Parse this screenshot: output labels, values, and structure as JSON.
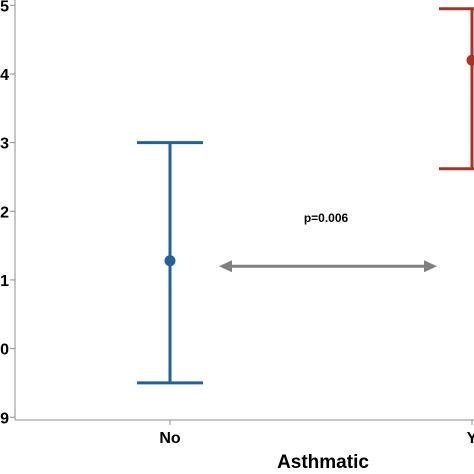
{
  "chart_data": {
    "type": "errorbar",
    "xlabel": "Asthmatic",
    "categories": [
      "No",
      "Yes"
    ],
    "x_tick_labels": [
      "No",
      "Y"
    ],
    "y_tick_labels": [
      "9",
      "0",
      "1",
      "2",
      "3",
      "4",
      "5"
    ],
    "ylim": [
      8.96,
      15.15
    ],
    "series": [
      {
        "category": "No",
        "mean": 11.28,
        "lower": 9.5,
        "upper": 13.0,
        "color": "#1f639a"
      },
      {
        "category": "Yes",
        "mean": 14.2,
        "lower": 12.62,
        "upper": 14.95,
        "color": "#a93226"
      }
    ],
    "comparison": {
      "label": "p=0.006",
      "y": 11.2,
      "color": "#808080"
    },
    "grid": false
  }
}
